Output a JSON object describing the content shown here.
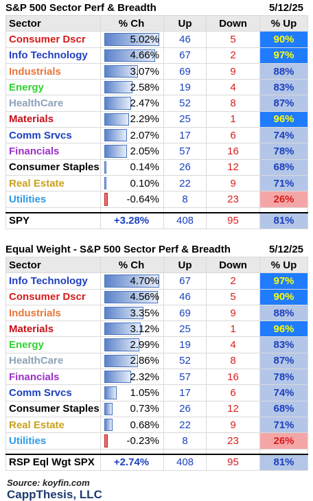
{
  "panel1": {
    "title": "S&P 500 Sector Perf & Breadth",
    "date": "5/12/25",
    "headers": {
      "sector": "Sector",
      "pct_ch": "% Ch",
      "up": "Up",
      "down": "Down",
      "pct_up": "% Up"
    },
    "rows": [
      {
        "sector": "Consumer Dscr",
        "color": "#d41b1b",
        "pct": "5.02%",
        "value": 5.02,
        "up": "46",
        "down": "5",
        "pct_up": "90%",
        "level": "high"
      },
      {
        "sector": "Info Technology",
        "color": "#1f3fbf",
        "pct": "4.66%",
        "value": 4.66,
        "up": "67",
        "down": "2",
        "pct_up": "97%",
        "level": "high"
      },
      {
        "sector": "Industrials",
        "color": "#e8763a",
        "pct": "3.07%",
        "value": 3.07,
        "up": "69",
        "down": "9",
        "pct_up": "88%",
        "level": "mid"
      },
      {
        "sector": "Energy",
        "color": "#2fd12f",
        "pct": "2.58%",
        "value": 2.58,
        "up": "19",
        "down": "4",
        "pct_up": "83%",
        "level": "mid"
      },
      {
        "sector": "HealthCare",
        "color": "#8da2b8",
        "pct": "2.47%",
        "value": 2.47,
        "up": "52",
        "down": "8",
        "pct_up": "87%",
        "level": "mid"
      },
      {
        "sector": "Materials",
        "color": "#c4121a",
        "pct": "2.29%",
        "value": 2.29,
        "up": "25",
        "down": "1",
        "pct_up": "96%",
        "level": "high"
      },
      {
        "sector": "Comm Srvcs",
        "color": "#1a3fbf",
        "pct": "2.07%",
        "value": 2.07,
        "up": "17",
        "down": "6",
        "pct_up": "74%",
        "level": "mid"
      },
      {
        "sector": "Financials",
        "color": "#9b30c8",
        "pct": "2.05%",
        "value": 2.05,
        "up": "57",
        "down": "16",
        "pct_up": "78%",
        "level": "mid"
      },
      {
        "sector": "Consumer Staples",
        "color": "#000000",
        "pct": "0.14%",
        "value": 0.14,
        "up": "26",
        "down": "12",
        "pct_up": "68%",
        "level": "mid"
      },
      {
        "sector": "Real Estate",
        "color": "#c9a21b",
        "pct": "0.10%",
        "value": 0.1,
        "up": "22",
        "down": "9",
        "pct_up": "71%",
        "level": "mid"
      },
      {
        "sector": "Utilities",
        "color": "#2f9be8",
        "pct": "-0.64%",
        "value": -0.64,
        "up": "8",
        "down": "23",
        "pct_up": "26%",
        "level": "low"
      }
    ],
    "total": {
      "sector": "SPY",
      "pct": "+3.28%",
      "up": "408",
      "down": "95",
      "pct_up": "81%"
    }
  },
  "panel2": {
    "title": "Equal Weight - S&P 500 Sector Perf & Breadth",
    "date": "5/12/25",
    "headers": {
      "sector": "Sector",
      "pct_ch": "% Ch",
      "up": "Up",
      "down": "Down",
      "pct_up": "% Up"
    },
    "rows": [
      {
        "sector": "Info Technology",
        "color": "#1f3fbf",
        "pct": "4.70%",
        "value": 4.7,
        "up": "67",
        "down": "2",
        "pct_up": "97%",
        "level": "high"
      },
      {
        "sector": "Consumer Dscr",
        "color": "#d41b1b",
        "pct": "4.56%",
        "value": 4.56,
        "up": "46",
        "down": "5",
        "pct_up": "90%",
        "level": "high"
      },
      {
        "sector": "Industrials",
        "color": "#e8763a",
        "pct": "3.35%",
        "value": 3.35,
        "up": "69",
        "down": "9",
        "pct_up": "88%",
        "level": "mid"
      },
      {
        "sector": "Materials",
        "color": "#c4121a",
        "pct": "3.12%",
        "value": 3.12,
        "up": "25",
        "down": "1",
        "pct_up": "96%",
        "level": "high"
      },
      {
        "sector": "Energy",
        "color": "#2fd12f",
        "pct": "2.99%",
        "value": 2.99,
        "up": "19",
        "down": "4",
        "pct_up": "83%",
        "level": "mid"
      },
      {
        "sector": "HealthCare",
        "color": "#8da2b8",
        "pct": "2.86%",
        "value": 2.86,
        "up": "52",
        "down": "8",
        "pct_up": "87%",
        "level": "mid"
      },
      {
        "sector": "Financials",
        "color": "#9b30c8",
        "pct": "2.32%",
        "value": 2.32,
        "up": "57",
        "down": "16",
        "pct_up": "78%",
        "level": "mid"
      },
      {
        "sector": "Comm Srvcs",
        "color": "#1a3fbf",
        "pct": "1.05%",
        "value": 1.05,
        "up": "17",
        "down": "6",
        "pct_up": "74%",
        "level": "mid"
      },
      {
        "sector": "Consumer Staples",
        "color": "#000000",
        "pct": "0.73%",
        "value": 0.73,
        "up": "26",
        "down": "12",
        "pct_up": "68%",
        "level": "mid"
      },
      {
        "sector": "Real Estate",
        "color": "#c9a21b",
        "pct": "0.68%",
        "value": 0.68,
        "up": "22",
        "down": "9",
        "pct_up": "71%",
        "level": "mid"
      },
      {
        "sector": "Utilities",
        "color": "#2f9be8",
        "pct": "-0.23%",
        "value": -0.23,
        "up": "8",
        "down": "23",
        "pct_up": "26%",
        "level": "low"
      }
    ],
    "total": {
      "sector": "RSP Eql Wgt SPX",
      "pct": "+2.74%",
      "up": "408",
      "down": "95",
      "pct_up": "81%"
    }
  },
  "footer": {
    "source": "Source: koyfin.com",
    "brand": "CappThesis, LLC"
  }
}
